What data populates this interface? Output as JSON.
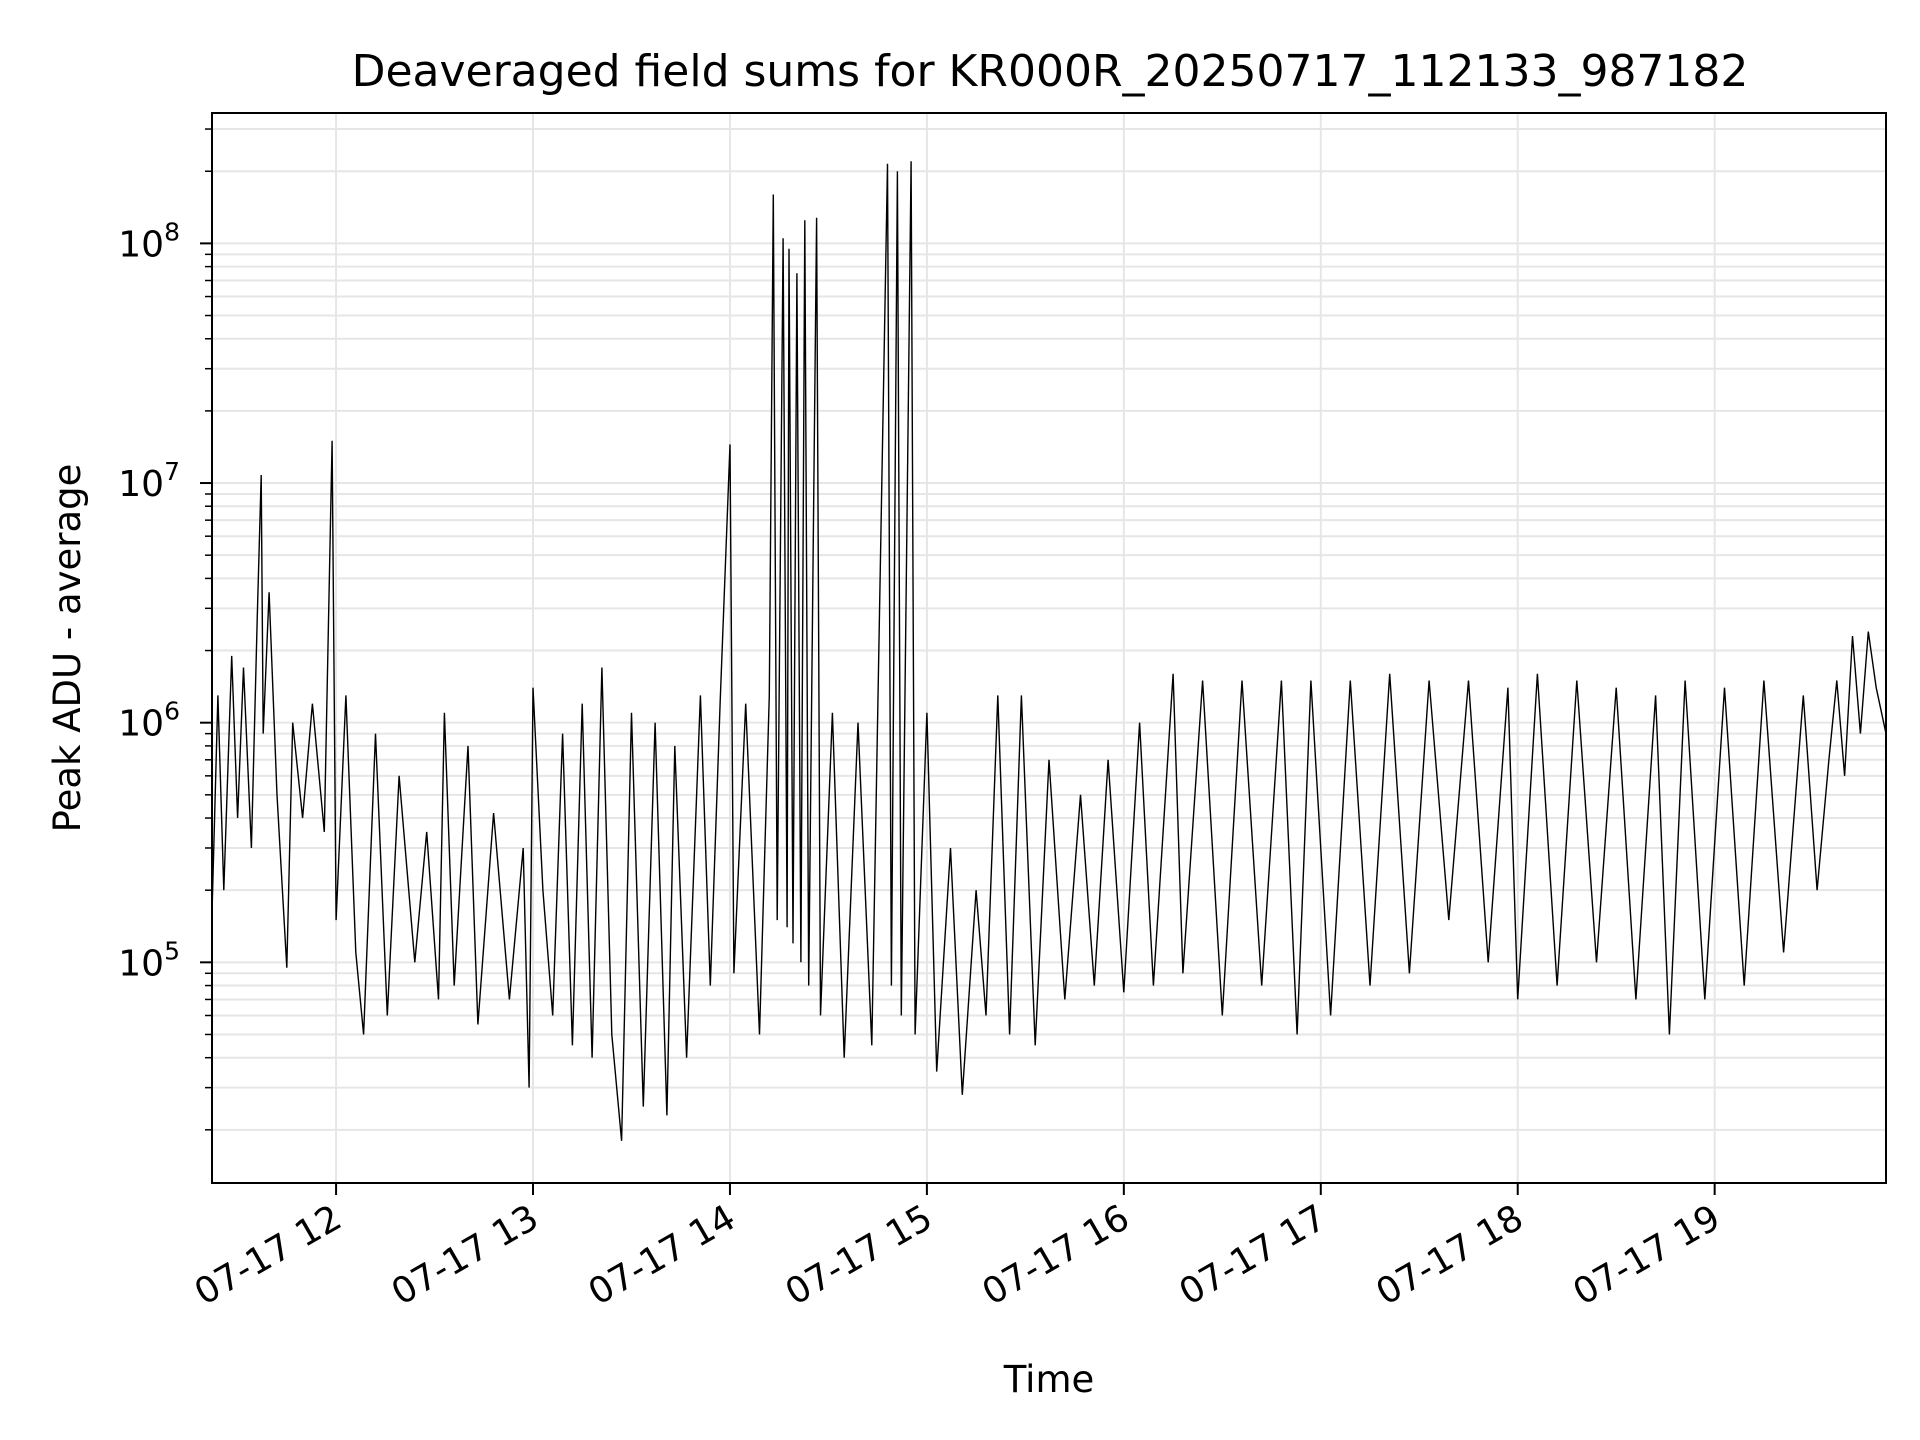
{
  "chart_data": {
    "type": "line",
    "title": "Deaveraged field sums for KR000R_20250717_112133_987182",
    "xlabel": "Time",
    "ylabel": "Peak ADU - average",
    "y_scale": "log",
    "x_unit": "hour of 2025-07-17",
    "xlim": [
      11.37,
      19.87
    ],
    "ylim": [
      12000,
      350000000
    ],
    "grid": true,
    "line_color": "#000000",
    "x_ticks": [
      {
        "value": 12,
        "label": "07-17 12"
      },
      {
        "value": 13,
        "label": "07-17 13"
      },
      {
        "value": 14,
        "label": "07-17 14"
      },
      {
        "value": 15,
        "label": "07-17 15"
      },
      {
        "value": 16,
        "label": "07-17 16"
      },
      {
        "value": 17,
        "label": "07-17 17"
      },
      {
        "value": 18,
        "label": "07-17 18"
      },
      {
        "value": 19,
        "label": "07-17 19"
      }
    ],
    "y_ticks": [
      {
        "value": 100000,
        "base": "10",
        "exp": "5"
      },
      {
        "value": 1000000,
        "base": "10",
        "exp": "6"
      },
      {
        "value": 10000000,
        "base": "10",
        "exp": "7"
      },
      {
        "value": 100000000,
        "base": "10",
        "exp": "8"
      }
    ],
    "series": [
      {
        "values": [
          [
            11.37,
            160000
          ],
          [
            11.4,
            1300000
          ],
          [
            11.43,
            200000
          ],
          [
            11.47,
            1900000
          ],
          [
            11.5,
            400000
          ],
          [
            11.53,
            1700000
          ],
          [
            11.57,
            300000
          ],
          [
            11.6,
            2800000
          ],
          [
            11.62,
            10800000
          ],
          [
            11.63,
            900000
          ],
          [
            11.66,
            3500000
          ],
          [
            11.7,
            500000
          ],
          [
            11.75,
            95000
          ],
          [
            11.78,
            1000000
          ],
          [
            11.83,
            400000
          ],
          [
            11.88,
            1200000
          ],
          [
            11.94,
            350000
          ],
          [
            11.98,
            15000000
          ],
          [
            12.0,
            150000
          ],
          [
            12.05,
            1300000
          ],
          [
            12.1,
            110000
          ],
          [
            12.14,
            50000
          ],
          [
            12.2,
            900000
          ],
          [
            12.26,
            60000
          ],
          [
            12.32,
            600000
          ],
          [
            12.4,
            100000
          ],
          [
            12.46,
            350000
          ],
          [
            12.52,
            70000
          ],
          [
            12.55,
            1100000
          ],
          [
            12.6,
            80000
          ],
          [
            12.67,
            800000
          ],
          [
            12.72,
            55000
          ],
          [
            12.8,
            420000
          ],
          [
            12.88,
            70000
          ],
          [
            12.95,
            300000
          ],
          [
            12.98,
            30000
          ],
          [
            13.0,
            1400000
          ],
          [
            13.05,
            200000
          ],
          [
            13.1,
            60000
          ],
          [
            13.15,
            900000
          ],
          [
            13.2,
            45000
          ],
          [
            13.25,
            1200000
          ],
          [
            13.3,
            40000
          ],
          [
            13.35,
            1700000
          ],
          [
            13.4,
            50000
          ],
          [
            13.45,
            18000
          ],
          [
            13.5,
            1100000
          ],
          [
            13.56,
            25000
          ],
          [
            13.62,
            1000000
          ],
          [
            13.68,
            23000
          ],
          [
            13.72,
            800000
          ],
          [
            13.78,
            40000
          ],
          [
            13.85,
            1300000
          ],
          [
            13.9,
            80000
          ],
          [
            13.95,
            1200000
          ],
          [
            14.0,
            14500000
          ],
          [
            14.02,
            90000
          ],
          [
            14.08,
            1200000
          ],
          [
            14.15,
            50000
          ],
          [
            14.2,
            1300000
          ],
          [
            14.22,
            160000000
          ],
          [
            14.24,
            150000
          ],
          [
            14.27,
            105000000
          ],
          [
            14.29,
            140000
          ],
          [
            14.3,
            95000000
          ],
          [
            14.32,
            120000
          ],
          [
            14.34,
            75000000
          ],
          [
            14.36,
            100000
          ],
          [
            14.38,
            125000000
          ],
          [
            14.4,
            80000
          ],
          [
            14.44,
            128000000
          ],
          [
            14.46,
            60000
          ],
          [
            14.52,
            1100000
          ],
          [
            14.58,
            40000
          ],
          [
            14.65,
            1000000
          ],
          [
            14.72,
            45000
          ],
          [
            14.8,
            215000000
          ],
          [
            14.82,
            80000
          ],
          [
            14.85,
            200000000
          ],
          [
            14.87,
            60000
          ],
          [
            14.92,
            220000000
          ],
          [
            14.94,
            50000
          ],
          [
            15.0,
            1100000
          ],
          [
            15.05,
            35000
          ],
          [
            15.12,
            300000
          ],
          [
            15.18,
            28000
          ],
          [
            15.25,
            200000
          ],
          [
            15.3,
            60000
          ],
          [
            15.36,
            1300000
          ],
          [
            15.42,
            50000
          ],
          [
            15.48,
            1300000
          ],
          [
            15.55,
            45000
          ],
          [
            15.62,
            700000
          ],
          [
            15.7,
            70000
          ],
          [
            15.78,
            500000
          ],
          [
            15.85,
            80000
          ],
          [
            15.92,
            700000
          ],
          [
            16.0,
            75000
          ],
          [
            16.08,
            1000000
          ],
          [
            16.15,
            80000
          ],
          [
            16.25,
            1600000
          ],
          [
            16.3,
            90000
          ],
          [
            16.4,
            1500000
          ],
          [
            16.5,
            60000
          ],
          [
            16.6,
            1500000
          ],
          [
            16.7,
            80000
          ],
          [
            16.8,
            1500000
          ],
          [
            16.88,
            50000
          ],
          [
            16.95,
            1500000
          ],
          [
            17.05,
            60000
          ],
          [
            17.15,
            1500000
          ],
          [
            17.25,
            80000
          ],
          [
            17.35,
            1600000
          ],
          [
            17.45,
            90000
          ],
          [
            17.55,
            1500000
          ],
          [
            17.65,
            150000
          ],
          [
            17.75,
            1500000
          ],
          [
            17.85,
            100000
          ],
          [
            17.95,
            1400000
          ],
          [
            18.0,
            70000
          ],
          [
            18.1,
            1600000
          ],
          [
            18.2,
            80000
          ],
          [
            18.3,
            1500000
          ],
          [
            18.4,
            100000
          ],
          [
            18.5,
            1400000
          ],
          [
            18.6,
            70000
          ],
          [
            18.7,
            1300000
          ],
          [
            18.77,
            50000
          ],
          [
            18.85,
            1500000
          ],
          [
            18.95,
            70000
          ],
          [
            19.05,
            1400000
          ],
          [
            19.15,
            80000
          ],
          [
            19.25,
            1500000
          ],
          [
            19.35,
            110000
          ],
          [
            19.45,
            1300000
          ],
          [
            19.52,
            200000
          ],
          [
            19.58,
            700000
          ],
          [
            19.62,
            1500000
          ],
          [
            19.66,
            600000
          ],
          [
            19.7,
            2300000
          ],
          [
            19.74,
            900000
          ],
          [
            19.78,
            2400000
          ],
          [
            19.82,
            1400000
          ],
          [
            19.87,
            900000
          ]
        ]
      }
    ]
  }
}
